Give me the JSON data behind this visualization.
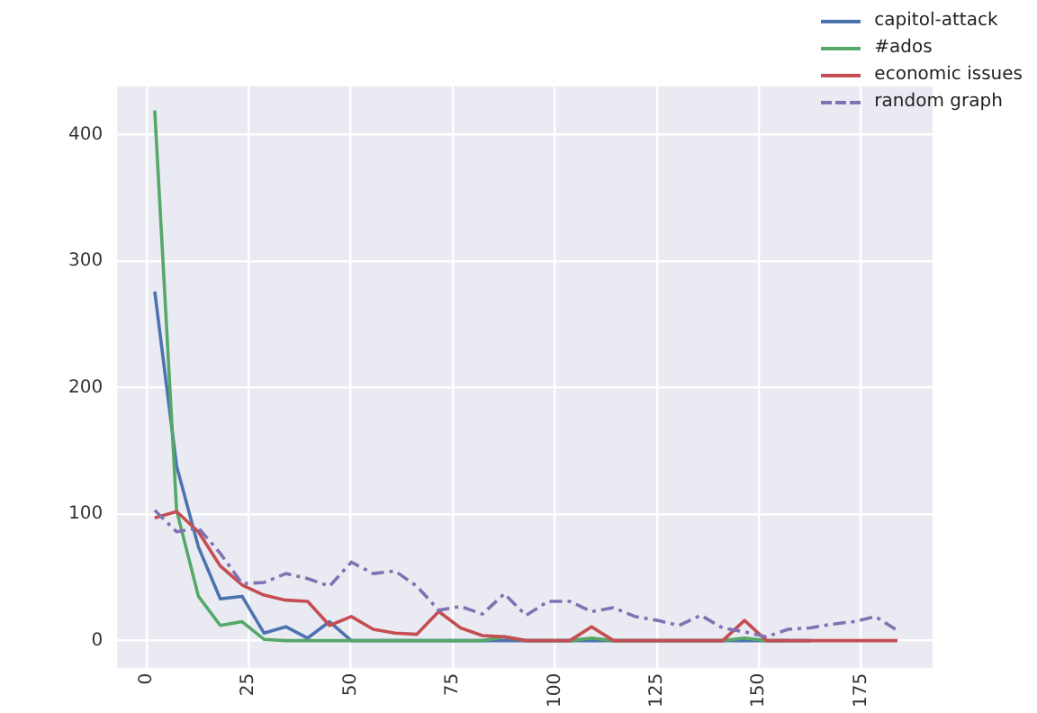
{
  "chart_data": {
    "type": "line",
    "x": [
      2,
      7.35,
      12.7,
      18.05,
      23.4,
      28.75,
      34.1,
      39.45,
      44.8,
      50.15,
      55.5,
      60.85,
      66.2,
      71.55,
      76.9,
      82.25,
      87.6,
      92.95,
      98.3,
      103.65,
      109,
      114.35,
      119.7,
      125.05,
      130.4,
      135.75,
      141.1,
      146.45,
      151.8,
      157.15,
      162.5,
      167.85,
      173.2,
      178.55,
      183.9
    ],
    "series": [
      {
        "name": "capitol-attack",
        "color": "#4c72b0",
        "values": [
          276,
          138,
          74,
          33,
          35,
          6,
          11,
          2,
          15,
          0,
          0,
          0,
          0,
          0,
          0,
          0,
          0,
          0,
          0,
          0,
          0,
          0,
          0,
          0,
          0,
          0,
          0,
          0,
          0,
          0,
          0,
          null,
          null,
          null,
          null
        ]
      },
      {
        "name": "#ados",
        "color": "#55a868",
        "values": [
          419,
          103,
          35,
          12,
          15,
          1,
          0,
          0,
          0,
          0,
          0,
          0,
          0,
          0,
          0,
          0,
          3,
          0,
          0,
          0,
          2,
          0,
          0,
          0,
          0,
          0,
          0,
          2,
          0,
          0,
          null,
          null,
          null,
          null,
          null
        ]
      },
      {
        "name": "economic issues",
        "color": "#c44e52",
        "values": [
          97,
          102,
          86,
          59,
          44,
          36,
          32,
          31,
          12,
          19,
          9,
          6,
          5,
          23,
          10,
          4,
          3,
          0,
          0,
          0,
          11,
          0,
          0,
          0,
          0,
          0,
          0,
          16,
          0,
          0,
          0,
          0,
          0,
          0,
          0
        ]
      },
      {
        "name": "random graph",
        "color": "#8172b2",
        "line_style": "dashed",
        "values": [
          103,
          86,
          89,
          69,
          45,
          46,
          53,
          49,
          43,
          62,
          53,
          55,
          43,
          24,
          27,
          21,
          37,
          20,
          31,
          31,
          23,
          26,
          19,
          16,
          12,
          20,
          10,
          7,
          3,
          9,
          10,
          13,
          15,
          19,
          8
        ]
      }
    ],
    "xlim": [
      -7.2,
      192.5
    ],
    "xticks": [
      0,
      25,
      50,
      75,
      100,
      125,
      150,
      175
    ],
    "ylim": [
      -21.5,
      438
    ],
    "yticks": [
      0,
      100,
      200,
      300,
      400
    ],
    "grid": true,
    "legend": "top right",
    "line_style": "solid"
  }
}
